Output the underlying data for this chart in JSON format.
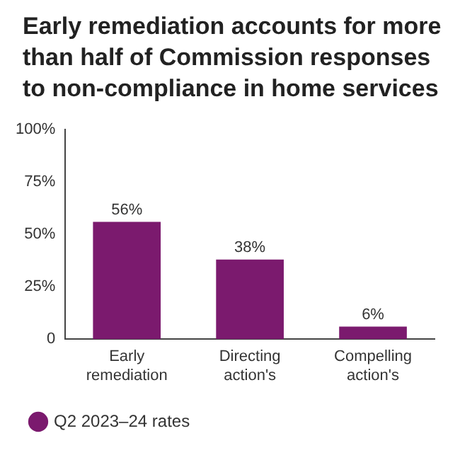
{
  "chart_data": {
    "type": "bar",
    "title": "Early remediation accounts for more than half of Commission responses to non-compliance in home services",
    "categories": [
      "Early remediation",
      "Directing action's",
      "Compelling action's"
    ],
    "series": [
      {
        "name": "Q2 2023–24 rates",
        "color": "#7b1a6e",
        "values": [
          56,
          38,
          6
        ],
        "value_labels": [
          "56%",
          "38%",
          "6%"
        ]
      }
    ],
    "ylim": [
      0,
      100
    ],
    "yticks": [
      {
        "value": 0,
        "label": "0"
      },
      {
        "value": 25,
        "label": "25%"
      },
      {
        "value": 50,
        "label": "50%"
      },
      {
        "value": 75,
        "label": "75%"
      },
      {
        "value": 100,
        "label": "100%"
      }
    ],
    "grid": false,
    "legend": "bottom left"
  }
}
